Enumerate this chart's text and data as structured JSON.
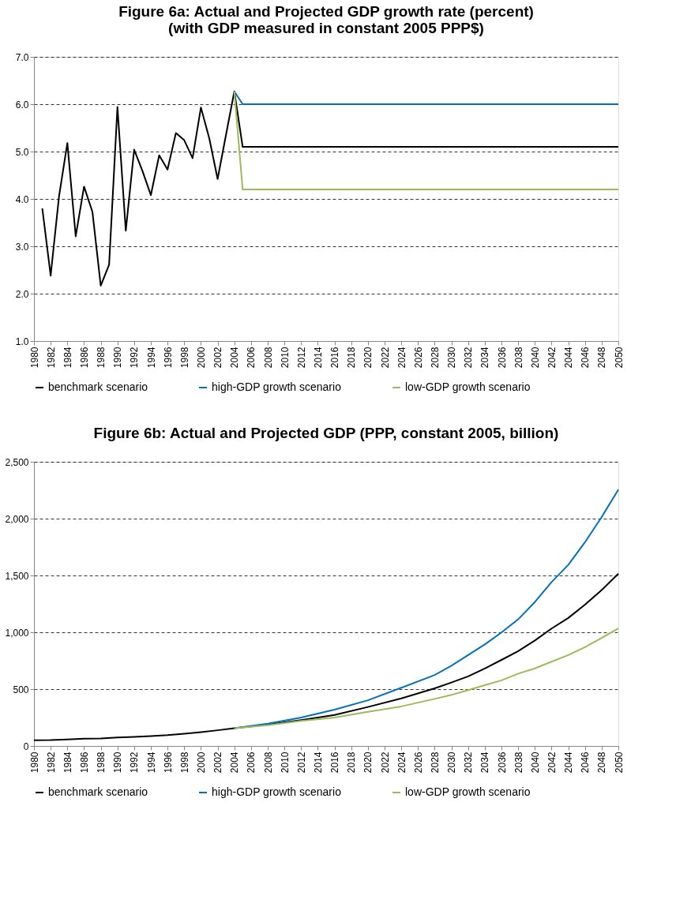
{
  "chart_data": [
    {
      "type": "line",
      "title": "Figure 6a: Actual and Projected GDP growth rate  (percent)\n(with GDP measured in constant 2005 PPP$)",
      "xlim": [
        1980,
        2050
      ],
      "xticks": [
        1980,
        1982,
        1984,
        1986,
        1988,
        1990,
        1992,
        1994,
        1996,
        1998,
        2000,
        2002,
        2004,
        2006,
        2008,
        2010,
        2012,
        2014,
        2016,
        2018,
        2020,
        2022,
        2024,
        2026,
        2028,
        2030,
        2032,
        2034,
        2036,
        2038,
        2040,
        2042,
        2044,
        2046,
        2048,
        2050
      ],
      "ylim": [
        1.0,
        7.0
      ],
      "yticks": [
        {
          "value": 1,
          "label": "1.0"
        },
        {
          "value": 2,
          "label": "2.0"
        },
        {
          "value": 3,
          "label": "3.0"
        },
        {
          "value": 4,
          "label": "4.0"
        },
        {
          "value": 5,
          "label": "5.0"
        },
        {
          "value": 6,
          "label": "6.0"
        },
        {
          "value": 7,
          "label": "7.0"
        }
      ],
      "grid": "y",
      "legend": "bottom",
      "line_style": "solid",
      "series": [
        {
          "name": "benchmark scenario",
          "color": "#000000",
          "x": [
            1981,
            1982,
            1983,
            1984,
            1985,
            1986,
            1987,
            1988,
            1989,
            1990,
            1991,
            1992,
            1993,
            1994,
            1995,
            1996,
            1997,
            1998,
            1999,
            2000,
            2001,
            2002,
            2003,
            2004,
            2005,
            2050
          ],
          "values": [
            3.8,
            2.38,
            4.05,
            5.18,
            3.21,
            4.26,
            3.73,
            2.17,
            2.61,
            5.94,
            3.33,
            5.04,
            4.59,
            4.08,
            4.92,
            4.62,
            5.39,
            5.24,
            4.86,
            5.93,
            5.28,
            4.42,
            5.35,
            6.27,
            5.1,
            5.1
          ]
        },
        {
          "name": "high-GDP growth scenario",
          "color": "#0070c0",
          "x": [
            2004,
            2005,
            2050
          ],
          "values": [
            6.27,
            6.0,
            6.0
          ]
        },
        {
          "name": "low-GDP growth scenario",
          "color": "#9bbb59",
          "x": [
            2004,
            2005,
            2050
          ],
          "values": [
            6.27,
            4.2,
            4.2
          ]
        }
      ]
    },
    {
      "type": "line",
      "title": "Figure 6b: Actual and Projected GDP (PPP, constant 2005, billion)",
      "xlim": [
        1980,
        2050
      ],
      "xticks": [
        1980,
        1982,
        1984,
        1986,
        1988,
        1990,
        1992,
        1994,
        1996,
        1998,
        2000,
        2002,
        2004,
        2006,
        2008,
        2010,
        2012,
        2014,
        2016,
        2018,
        2020,
        2022,
        2024,
        2026,
        2028,
        2030,
        2032,
        2034,
        2036,
        2038,
        2040,
        2042,
        2044,
        2046,
        2048,
        2050
      ],
      "ylim": [
        0,
        2500
      ],
      "yticks": [
        0,
        500,
        {
          "value": 1000,
          "label": "1,000"
        },
        {
          "value": 1500,
          "label": "1,500"
        },
        {
          "value": 2000,
          "label": "2,000"
        },
        {
          "value": 2500,
          "label": "2,500"
        }
      ],
      "grid": "y",
      "legend": "bottom",
      "line_style": "solid",
      "series": [
        {
          "name": "benchmark scenario",
          "color": "#000000",
          "x": [
            1980,
            1982,
            1984,
            1986,
            1988,
            1990,
            1992,
            1994,
            1996,
            1998,
            2000,
            2002,
            2004,
            2008,
            2012,
            2016,
            2020,
            2024,
            2028,
            2030,
            2032,
            2034,
            2036,
            2038,
            2040,
            2042,
            2044,
            2046,
            2048,
            2050
          ],
          "values": [
            51,
            52,
            58,
            64,
            66,
            75,
            80,
            87,
            95,
            107,
            121,
            138,
            157,
            187,
            227,
            273,
            343,
            418,
            507,
            558,
            612,
            682,
            757,
            834,
            928,
            1033,
            1126,
            1243,
            1371,
            1516
          ]
        },
        {
          "name": "high-GDP growth scenario",
          "color": "#0070c0",
          "x": [
            2004,
            2008,
            2012,
            2016,
            2020,
            2024,
            2028,
            2030,
            2032,
            2034,
            2036,
            2038,
            2040,
            2042,
            2044,
            2046,
            2048,
            2050
          ],
          "values": [
            157,
            196,
            250,
            320,
            402,
            512,
            624,
            706,
            799,
            893,
            998,
            1114,
            1266,
            1442,
            1593,
            1792,
            2014,
            2255
          ]
        },
        {
          "name": "low-GDP growth scenario",
          "color": "#9bbb59",
          "x": [
            2004,
            2008,
            2012,
            2016,
            2020,
            2024,
            2028,
            2030,
            2032,
            2034,
            2036,
            2038,
            2040,
            2042,
            2044,
            2046,
            2048,
            2050
          ],
          "values": [
            157,
            182,
            220,
            250,
            301,
            348,
            414,
            449,
            491,
            535,
            577,
            636,
            682,
            741,
            799,
            869,
            951,
            1033
          ]
        }
      ]
    }
  ]
}
